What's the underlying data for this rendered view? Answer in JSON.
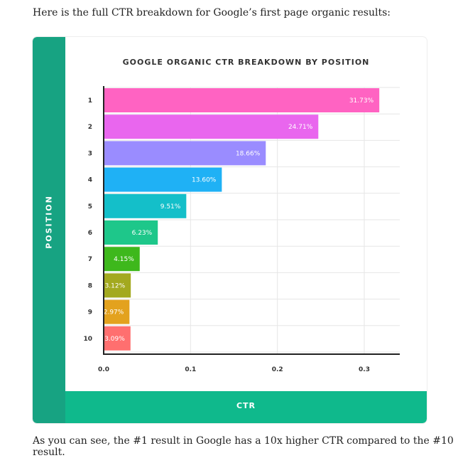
{
  "intro_text": "Here is the full CTR breakdown for Google’s first page organic results:",
  "outro_text": "As you can see, the #1 result in Google has a 10x higher CTR compared to the #10 result.",
  "chart_data": {
    "type": "bar",
    "orientation": "horizontal",
    "title": "GOOGLE ORGANIC CTR BREAKDOWN BY POSITION",
    "xlabel": "CTR",
    "ylabel": "POSITION",
    "categories": [
      "1",
      "2",
      "3",
      "4",
      "5",
      "6",
      "7",
      "8",
      "9",
      "10"
    ],
    "values": [
      0.3173,
      0.2471,
      0.1866,
      0.136,
      0.0951,
      0.0623,
      0.0415,
      0.0312,
      0.0297,
      0.0309
    ],
    "data_labels": [
      "31.73%",
      "24.71%",
      "18.66%",
      "13.60%",
      "9.51%",
      "6.23%",
      "4.15%",
      "3.12%",
      "2.97%",
      "3.09%"
    ],
    "bar_colors": [
      "#ff63c2",
      "#e966ee",
      "#9a8cff",
      "#1fb1f5",
      "#14bfc9",
      "#1ec78a",
      "#3eb81c",
      "#a3a91f",
      "#e3a21e",
      "#ff6f6f"
    ],
    "xticks": [
      "0.0",
      "0.1",
      "0.2",
      "0.3"
    ],
    "xtick_values": [
      0,
      0.1,
      0.2,
      0.3
    ],
    "xlim": [
      0,
      0.35
    ],
    "grid": true,
    "legend": "none"
  }
}
